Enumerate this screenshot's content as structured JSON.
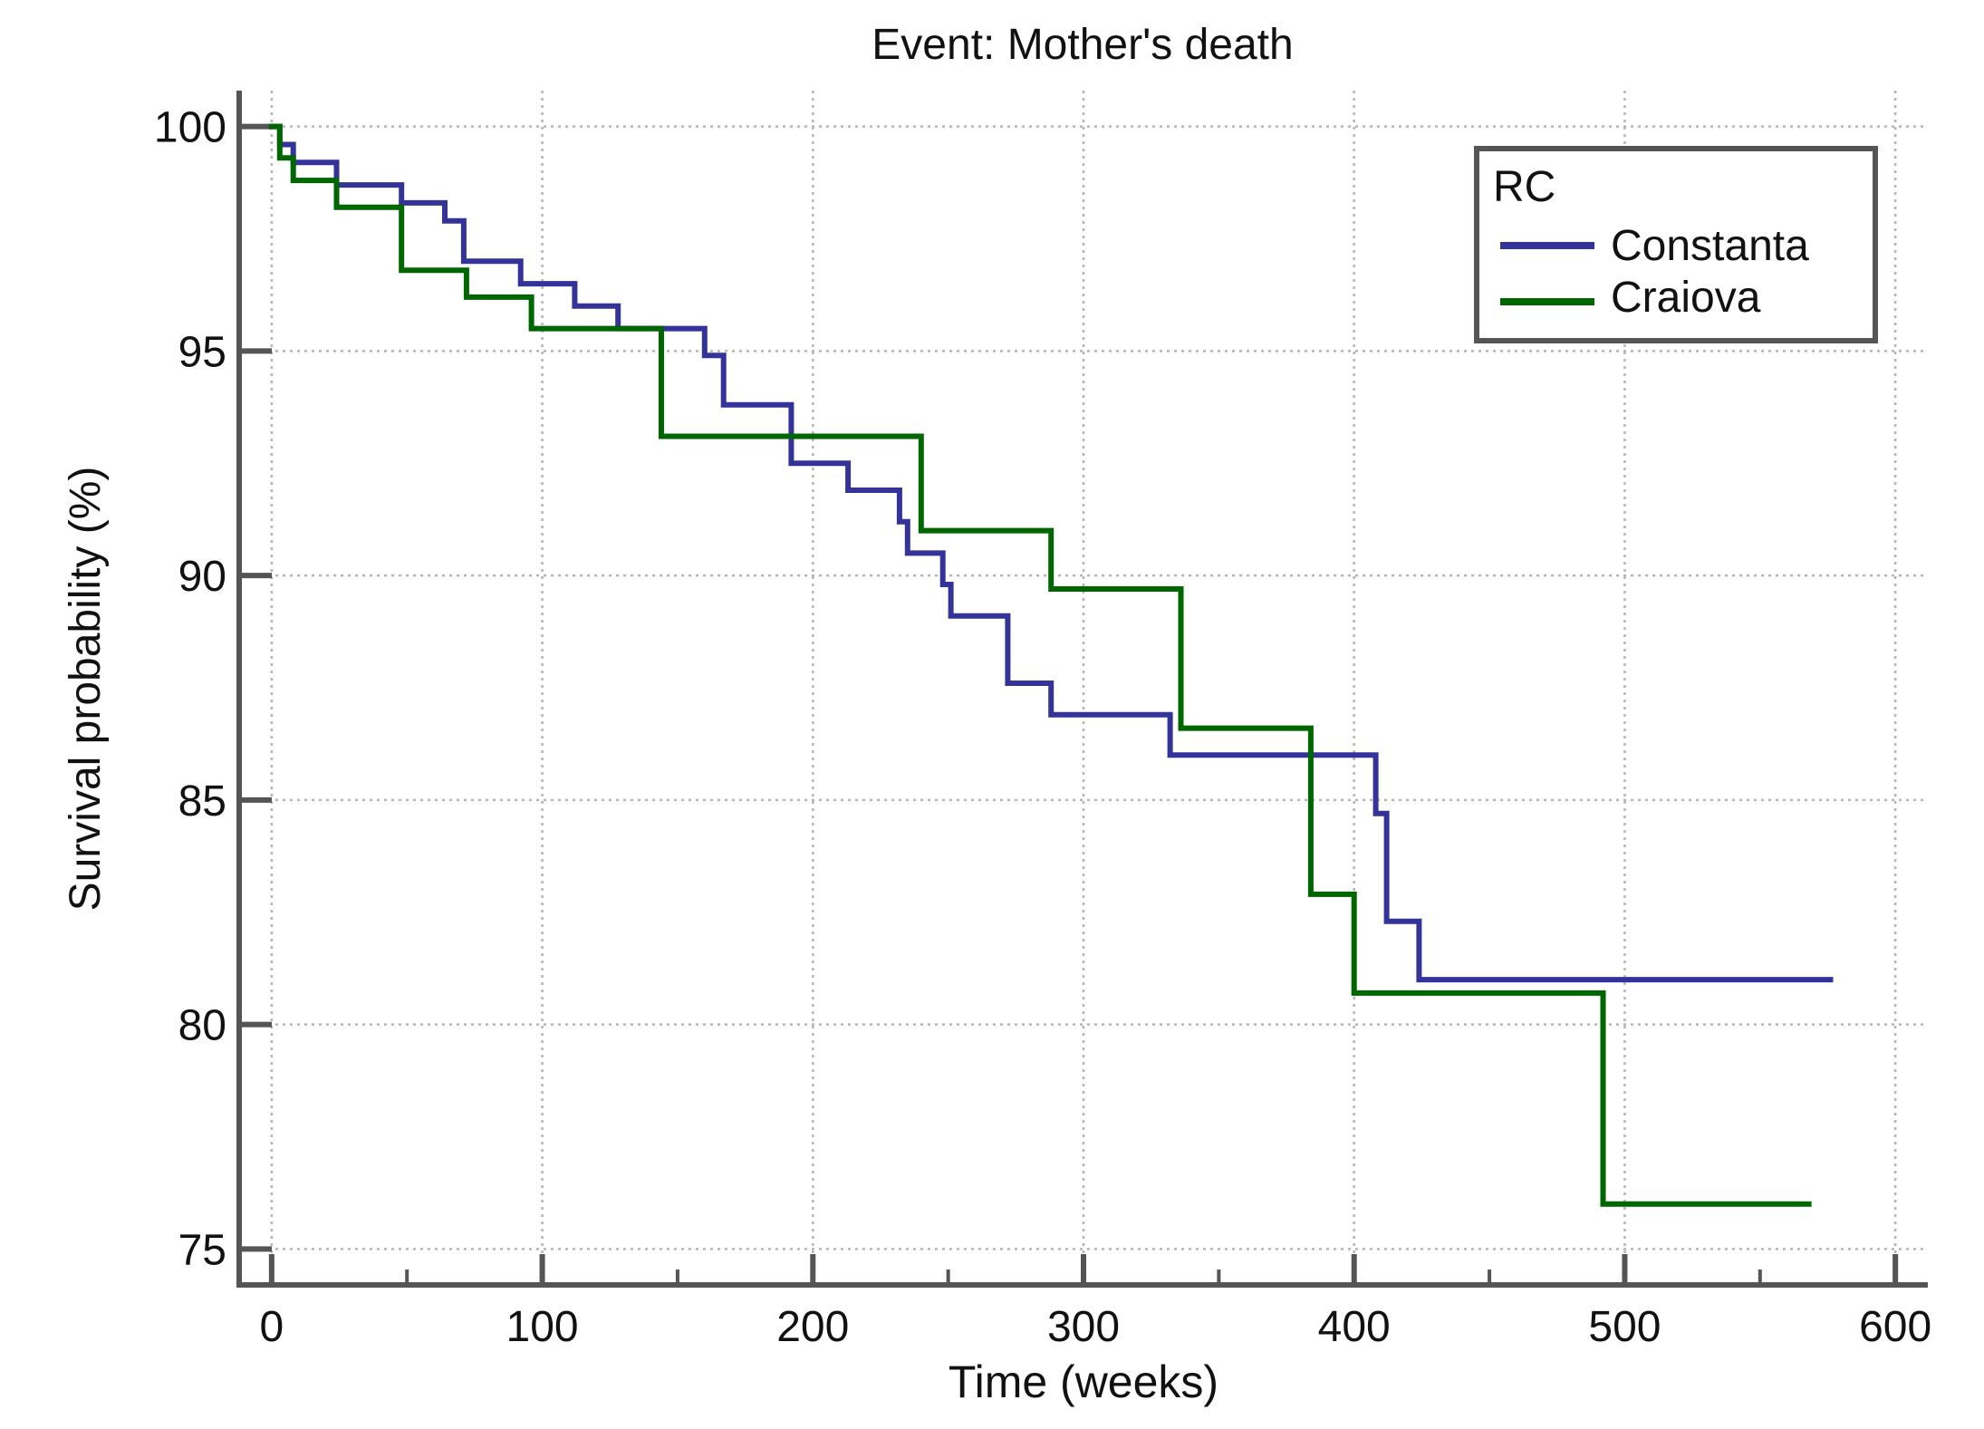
{
  "chart_data": {
    "type": "line",
    "subtype": "kaplan-meier step",
    "title": "Event: Mother's death",
    "xlabel": "Time (weeks)",
    "ylabel": "Survival probability (%)",
    "xlim": [
      -12,
      612
    ],
    "ylim": [
      74.2,
      100.8
    ],
    "x_ticks": [
      0,
      100,
      200,
      300,
      400,
      500,
      600
    ],
    "y_ticks": [
      75,
      80,
      85,
      90,
      95,
      100
    ],
    "grid": true,
    "legend": {
      "title": "RC",
      "position": "top-right"
    },
    "series": [
      {
        "name": "Constanta",
        "color": "#333399",
        "x": [
          0,
          3,
          3,
          8,
          8,
          24,
          24,
          48,
          48,
          64,
          64,
          71,
          71,
          92,
          92,
          112,
          112,
          128,
          128,
          160,
          160,
          167,
          167,
          192,
          192,
          213,
          213,
          232,
          232,
          235,
          235,
          248,
          248,
          251,
          251,
          272,
          272,
          288,
          288,
          332,
          332,
          408,
          408,
          412,
          412,
          424,
          424,
          576
        ],
        "y": [
          100,
          100,
          99.6,
          99.6,
          99.2,
          99.2,
          98.7,
          98.7,
          98.3,
          98.3,
          97.9,
          97.9,
          97.0,
          97.0,
          96.5,
          96.5,
          96.0,
          96.0,
          95.5,
          95.5,
          94.9,
          94.9,
          93.8,
          93.8,
          92.5,
          92.5,
          91.9,
          91.9,
          91.2,
          91.2,
          90.5,
          90.5,
          89.8,
          89.8,
          89.1,
          89.1,
          87.6,
          87.6,
          86.9,
          86.9,
          86.0,
          86.0,
          84.7,
          84.7,
          82.3,
          82.3,
          81.0,
          81.0
        ]
      },
      {
        "name": "Craiova",
        "color": "#006600",
        "x": [
          0,
          3,
          3,
          8,
          8,
          24,
          24,
          48,
          48,
          72,
          72,
          96,
          96,
          144,
          144,
          240,
          240,
          288,
          288,
          336,
          336,
          384,
          384,
          400,
          400,
          492,
          492,
          568
        ],
        "y": [
          100,
          100,
          99.3,
          99.3,
          98.8,
          98.8,
          98.2,
          98.2,
          96.8,
          96.8,
          96.2,
          96.2,
          95.5,
          95.5,
          93.1,
          93.1,
          91.0,
          91.0,
          89.7,
          89.7,
          86.6,
          86.6,
          82.9,
          82.9,
          80.7,
          80.7,
          76.0,
          76.0
        ]
      }
    ]
  }
}
